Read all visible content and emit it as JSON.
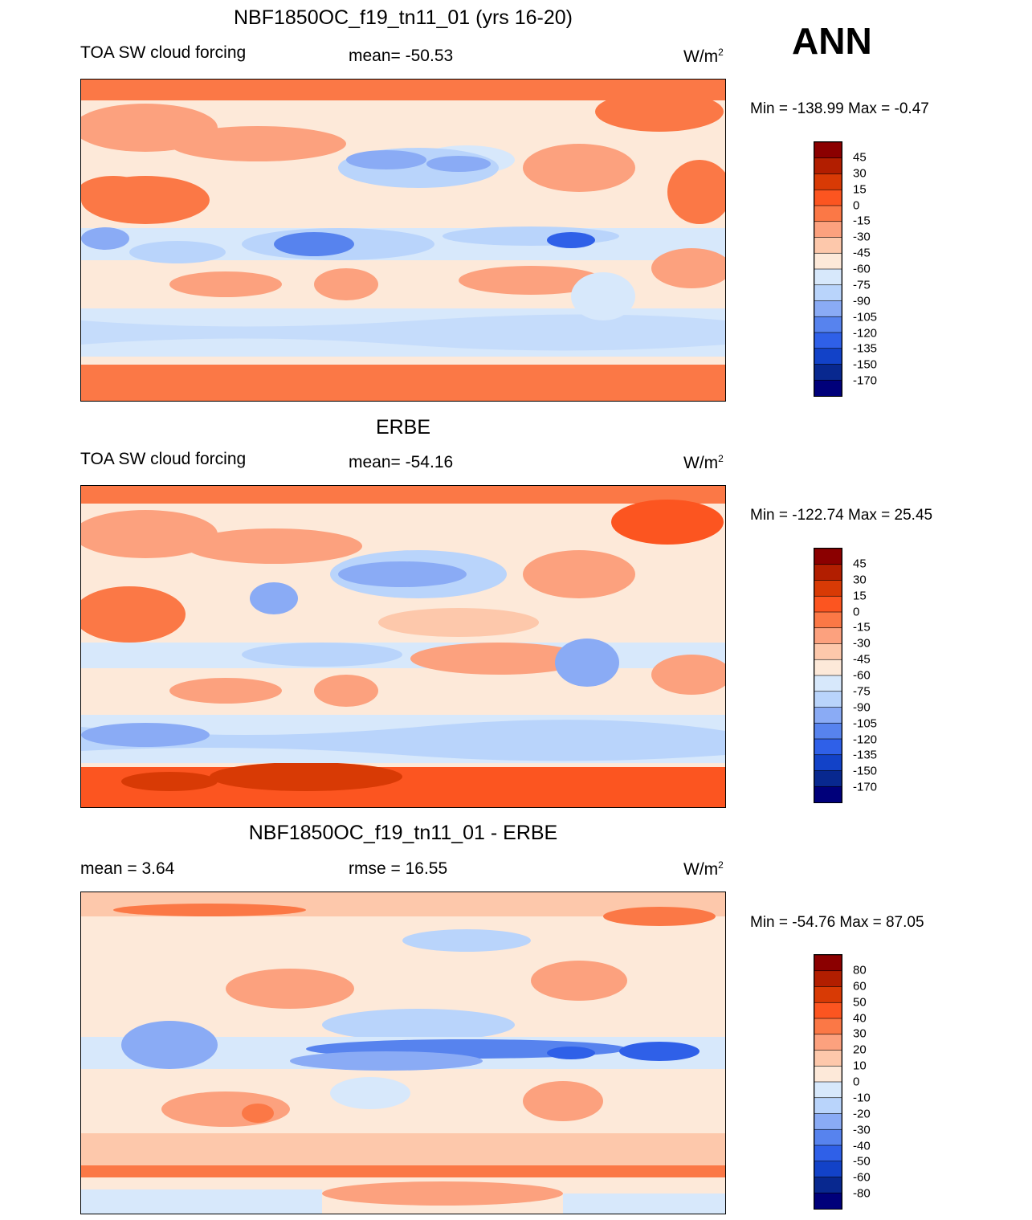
{
  "season": "ANN",
  "panels": [
    {
      "title": "NBF1850OC_f19_tn11_01 (yrs 16-20)",
      "left_label": "TOA SW cloud forcing",
      "center_label": "mean= -50.53",
      "units_base": "W/m",
      "units_sup": "2",
      "minmax": "Min = -138.99 Max =  -0.47",
      "colorbar_labels": [
        "45",
        "30",
        "15",
        "0",
        "-15",
        "-30",
        "-45",
        "-60",
        "-75",
        "-90",
        "-105",
        "-120",
        "-135",
        "-150",
        "-170"
      ],
      "colorbar_colors": [
        "#8b0000",
        "#b21e00",
        "#d83a05",
        "#fc5520",
        "#fb7846",
        "#fca17e",
        "#fdc8ab",
        "#fde9d9",
        "#d7e8fb",
        "#b9d4fb",
        "#8aabf5",
        "#5783ee",
        "#2f60e8",
        "#1242c8",
        "#08288f",
        "#00007a"
      ]
    },
    {
      "title": "ERBE",
      "left_label": "TOA SW cloud forcing",
      "center_label": "mean= -54.16",
      "units_base": "W/m",
      "units_sup": "2",
      "minmax": "Min = -122.74 Max =  25.45",
      "colorbar_labels": [
        "45",
        "30",
        "15",
        "0",
        "-15",
        "-30",
        "-45",
        "-60",
        "-75",
        "-90",
        "-105",
        "-120",
        "-135",
        "-150",
        "-170"
      ],
      "colorbar_colors": [
        "#8b0000",
        "#b21e00",
        "#d83a05",
        "#fc5520",
        "#fb7846",
        "#fca17e",
        "#fdc8ab",
        "#fde9d9",
        "#d7e8fb",
        "#b9d4fb",
        "#8aabf5",
        "#5783ee",
        "#2f60e8",
        "#1242c8",
        "#08288f",
        "#00007a"
      ]
    },
    {
      "title": "NBF1850OC_f19_tn11_01 - ERBE",
      "left_label": "mean =   3.64",
      "center_label": "rmse =  16.55",
      "units_base": "W/m",
      "units_sup": "2",
      "minmax": "Min = -54.76 Max =  87.05",
      "colorbar_labels": [
        "80",
        "60",
        "50",
        "40",
        "30",
        "20",
        "10",
        "0",
        "-10",
        "-20",
        "-30",
        "-40",
        "-50",
        "-60",
        "-80"
      ],
      "colorbar_colors": [
        "#8b0000",
        "#b21e00",
        "#d83a05",
        "#fc5520",
        "#fb7846",
        "#fca17e",
        "#fdc8ab",
        "#fde9d9",
        "#d7e8fb",
        "#b9d4fb",
        "#8aabf5",
        "#5783ee",
        "#2f60e8",
        "#1242c8",
        "#08288f",
        "#00007a"
      ]
    }
  ],
  "chart_data": [
    {
      "type": "heatmap",
      "title": "NBF1850OC_f19_tn11_01 (yrs 16-20)",
      "variable": "TOA SW cloud forcing",
      "units": "W/m2",
      "mean": -50.53,
      "min": -138.99,
      "max": -0.47,
      "contour_levels": [
        45,
        30,
        15,
        0,
        -15,
        -30,
        -45,
        -60,
        -75,
        -90,
        -105,
        -120,
        -135,
        -150,
        -170
      ]
    },
    {
      "type": "heatmap",
      "title": "ERBE",
      "variable": "TOA SW cloud forcing",
      "units": "W/m2",
      "mean": -54.16,
      "min": -122.74,
      "max": 25.45,
      "contour_levels": [
        45,
        30,
        15,
        0,
        -15,
        -30,
        -45,
        -60,
        -75,
        -90,
        -105,
        -120,
        -135,
        -150,
        -170
      ]
    },
    {
      "type": "heatmap",
      "title": "NBF1850OC_f19_tn11_01 - ERBE",
      "units": "W/m2",
      "mean": 3.64,
      "rmse": 16.55,
      "min": -54.76,
      "max": 87.05,
      "contour_levels": [
        80,
        60,
        50,
        40,
        30,
        20,
        10,
        0,
        -10,
        -20,
        -30,
        -40,
        -50,
        -60,
        -80
      ]
    }
  ]
}
